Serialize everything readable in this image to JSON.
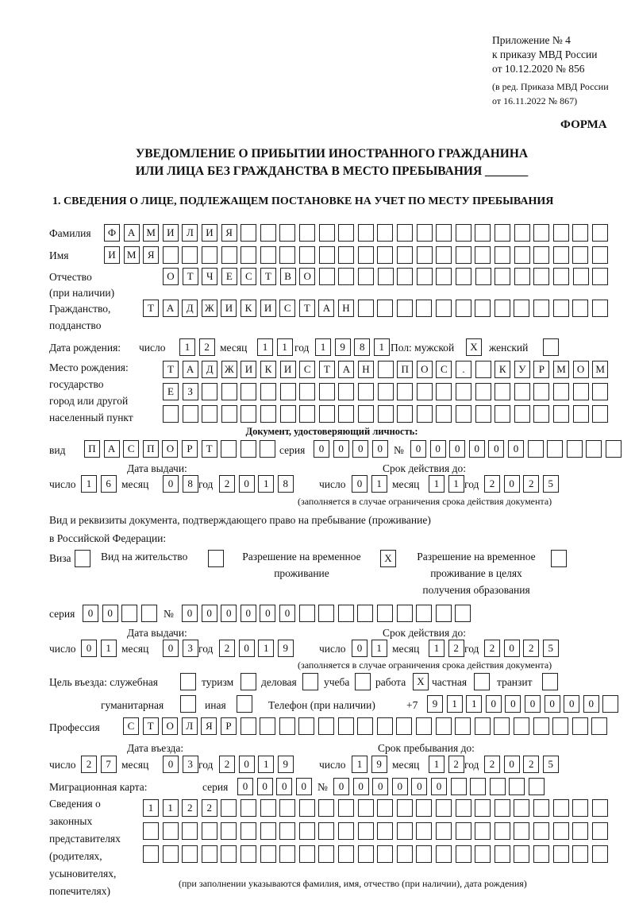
{
  "header": {
    "lines": [
      "Приложение № 4",
      "к приказу МВД России",
      "от 10.12.2020 № 856"
    ],
    "edit_lines": [
      "(в ред. Приказа МВД России",
      "от 16.11.2022 № 867)"
    ],
    "form_label": "ФОРМА"
  },
  "title": {
    "line1": "УВЕДОМЛЕНИЕ О ПРИБЫТИИ ИНОСТРАННОГО ГРАЖДАНИНА",
    "line2": "ИЛИ ЛИЦА БЕЗ ГРАЖДАНСТВА В МЕСТО ПРЕБЫВАНИЯ",
    "line2_blank": "_______"
  },
  "section1": {
    "heading": "1. СВЕДЕНИЯ О ЛИЦЕ, ПОДЛЕЖАЩЕМ ПОСТАНОВКЕ НА УЧЕТ ПО МЕСТУ ПРЕБЫВАНИЯ"
  },
  "labels": {
    "surname": "Фамилия",
    "name": "Имя",
    "patronymic": "Отчество",
    "patronymic_note": "(при наличии)",
    "citizenship1": "Гражданство,",
    "citizenship2": "подданство",
    "birth_date": "Дата рождения:",
    "day": "число",
    "month": "месяц",
    "year": "год",
    "sex": "Пол: мужской",
    "female": "женский",
    "birthplace": [
      "Место рождения:",
      "государство",
      "город или другой",
      "населенный пункт"
    ],
    "id_doc": "Документ, удостоверяющий личность:",
    "kind": "вид",
    "series": "серия",
    "number": "№",
    "issue_date": "Дата выдачи:",
    "valid_until": "Срок действия до:",
    "valid_note": "(заполняется в случае ограничения срока действия документа)",
    "right_doc1": "Вид и реквизиты документа, подтверждающего право на пребывание (проживание)",
    "right_doc2": "в Российской Федерации:",
    "visa": "Виза",
    "residence": "Вид на жительство",
    "trp": [
      "Разрешение на временное",
      "проживание"
    ],
    "trp_edu": [
      "Разрешение на временное",
      "проживание в целях",
      "получения образования"
    ],
    "purpose": "Цель въезда: служебная",
    "tourism": "туризм",
    "business": "деловая",
    "study": "учеба",
    "work": "работа",
    "private": "частная",
    "transit": "транзит",
    "humanitarian": "гуманитарная",
    "other": "иная",
    "phone": "Телефон (при наличии)",
    "phone_prefix": "+7",
    "profession": "Профессия",
    "entry_date": "Дата въезда:",
    "stay_until": "Срок пребывания до:",
    "migration_card": "Миграционная карта:",
    "representatives": [
      "Сведения о",
      "законных",
      "представителях",
      "(родителях,",
      "усыновителях,",
      "попечителях)"
    ],
    "representatives_note": "(при заполнении указываются фамилия, имя, отчество (при наличии), дата рождения)"
  },
  "person": {
    "surname": "ФАМИЛИЯ",
    "name": "ИМЯ",
    "patronymic": "ОТЧЕСТВО",
    "citizenship": "ТАДЖИКИСТАН",
    "birth_day": "12",
    "birth_month": "11",
    "birth_year": "1981",
    "male": "X",
    "female": "",
    "birthplace": [
      "ТАДЖИКИСТАН ПОС. КУРМОМБ",
      "ЕЗ",
      ""
    ]
  },
  "id_document": {
    "kind": "ПАСПОРТ",
    "series": "0000",
    "number": "000000",
    "issue_day": "16",
    "issue_month": "08",
    "issue_year": "2018",
    "valid_day": "01",
    "valid_month": "11",
    "valid_year": "2025"
  },
  "right_document": {
    "visa": "",
    "residence_permit": "",
    "trp": "X",
    "trp_education": "",
    "series": "00",
    "number": "000000",
    "issue_day": "01",
    "issue_month": "03",
    "issue_year": "2019",
    "valid_day": "01",
    "valid_month": "12",
    "valid_year": "2025"
  },
  "purpose": {
    "official": "",
    "tourism": "",
    "business": "",
    "study": "",
    "work": "X",
    "private": "",
    "transit": "",
    "humanitarian": "",
    "other": ""
  },
  "phone": "911000000",
  "profession": "СТОЛЯР",
  "entry": {
    "day": "27",
    "month": "03",
    "year": "2019",
    "stay_day": "19",
    "stay_month": "12",
    "stay_year": "2025"
  },
  "migration_card": {
    "series": "0000",
    "number": "000000"
  },
  "representatives": [
    "1122",
    "",
    ""
  ]
}
